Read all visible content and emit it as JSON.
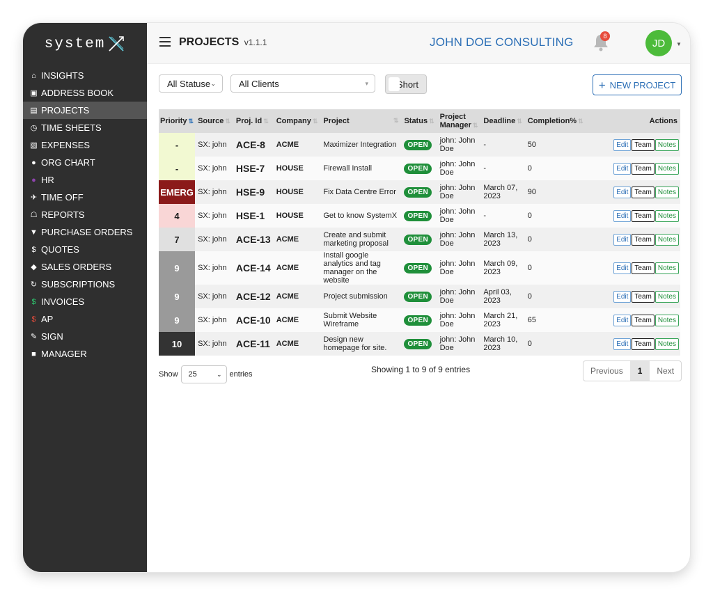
{
  "app": {
    "logo_text": "system"
  },
  "sidebar": {
    "items": [
      {
        "label": "INSIGHTS",
        "icon": "home-icon",
        "glyph": "⌂",
        "color": "#ffffff"
      },
      {
        "label": "ADDRESS BOOK",
        "icon": "address-book-icon",
        "glyph": "▣",
        "color": "#ffffff"
      },
      {
        "label": "PROJECTS",
        "icon": "briefcase-icon",
        "glyph": "▤",
        "color": "#ffffff",
        "active": true
      },
      {
        "label": "TIME SHEETS",
        "icon": "clock-icon",
        "glyph": "◷",
        "color": "#ffffff"
      },
      {
        "label": "EXPENSES",
        "icon": "money-icon",
        "glyph": "▧",
        "color": "#ffffff"
      },
      {
        "label": "ORG CHART",
        "icon": "user-icon",
        "glyph": "●",
        "color": "#ffffff"
      },
      {
        "label": "HR",
        "icon": "user-purple-icon",
        "glyph": "●",
        "color": "#8e44ad"
      },
      {
        "label": "TIME OFF",
        "icon": "plane-icon",
        "glyph": "✈",
        "color": "#ffffff"
      },
      {
        "label": "REPORTS",
        "icon": "bank-icon",
        "glyph": "☖",
        "color": "#ffffff"
      },
      {
        "label": "PURCHASE ORDERS",
        "icon": "cart-icon",
        "glyph": "▼",
        "color": "#ffffff"
      },
      {
        "label": "QUOTES",
        "icon": "dollar-icon",
        "glyph": "$",
        "color": "#ffffff"
      },
      {
        "label": "SALES ORDERS",
        "icon": "tag-icon",
        "glyph": "◆",
        "color": "#ffffff"
      },
      {
        "label": "SUBSCRIPTIONS",
        "icon": "refresh-icon",
        "glyph": "↻",
        "color": "#ffffff"
      },
      {
        "label": "INVOICES",
        "icon": "dollar-green-icon",
        "glyph": "$",
        "color": "#2ecc71"
      },
      {
        "label": "AP",
        "icon": "dollar-red-icon",
        "glyph": "$",
        "color": "#e74c3c"
      },
      {
        "label": "SIGN",
        "icon": "pen-icon",
        "glyph": "✎",
        "color": "#ffffff"
      },
      {
        "label": "MANAGER",
        "icon": "lock-icon",
        "glyph": "■",
        "color": "#ffffff"
      }
    ]
  },
  "header": {
    "title": "PROJECTS",
    "version": "v1.1.1",
    "company": "JOHN DOE CONSULTING",
    "notification_count": "8",
    "avatar_initials": "JD"
  },
  "toolbar": {
    "status_filter": "All Statuses",
    "client_filter": "All Clients",
    "short_label": "Short",
    "new_project_label": "NEW PROJECT"
  },
  "table": {
    "columns": [
      "Priority",
      "Source",
      "Proj. Id",
      "Company",
      "Project",
      "Status",
      "Project Manager",
      "Deadline",
      "Completion%",
      "Actions"
    ],
    "action_labels": {
      "edit": "Edit",
      "team": "Team",
      "notes": "Notes"
    },
    "rows": [
      {
        "priority": "-",
        "priority_bg": "#f2f9d2",
        "priority_fg": "#222222",
        "source": "SX: john",
        "id": "ACE-8",
        "company": "ACME",
        "project": "Maximizer Integration",
        "status": "OPEN",
        "manager": "john: John Doe",
        "deadline": "-",
        "deadline_overdue": false,
        "completion": "50"
      },
      {
        "priority": "-",
        "priority_bg": "#f2f9d2",
        "priority_fg": "#222222",
        "source": "SX: john",
        "id": "HSE-7",
        "company": "HOUSE",
        "project": "Firewall Install",
        "status": "OPEN",
        "manager": "john: John Doe",
        "deadline": "-",
        "deadline_overdue": false,
        "completion": "0"
      },
      {
        "priority": "EMERG",
        "priority_bg": "#8b1a1a",
        "priority_fg": "#ffffff",
        "source": "SX: john",
        "id": "HSE-9",
        "company": "HOUSE",
        "project": "Fix Data Centre Error",
        "status": "OPEN",
        "manager": "john: John Doe",
        "deadline": "March 07, 2023",
        "deadline_overdue": true,
        "completion": "90"
      },
      {
        "priority": "4",
        "priority_bg": "#f9d6d6",
        "priority_fg": "#222222",
        "source": "SX: john",
        "id": "HSE-1",
        "company": "HOUSE",
        "project": "Get to know SystemX",
        "status": "OPEN",
        "manager": "john: John Doe",
        "deadline": "-",
        "deadline_overdue": false,
        "completion": "0"
      },
      {
        "priority": "7",
        "priority_bg": "#e0e0e0",
        "priority_fg": "#222222",
        "source": "SX: john",
        "id": "ACE-13",
        "company": "ACME",
        "project": "Create and submit marketing proposal",
        "status": "OPEN",
        "manager": "john: John Doe",
        "deadline": "March 13, 2023",
        "deadline_overdue": true,
        "completion": "0"
      },
      {
        "priority": "9",
        "priority_bg": "#9a9a9a",
        "priority_fg": "#ffffff",
        "source": "SX: john",
        "id": "ACE-14",
        "company": "ACME",
        "project": "Install google analytics and tag manager on the website",
        "status": "OPEN",
        "manager": "john: John Doe",
        "deadline": "March 09, 2023",
        "deadline_overdue": true,
        "completion": "0"
      },
      {
        "priority": "9",
        "priority_bg": "#9a9a9a",
        "priority_fg": "#ffffff",
        "source": "SX: john",
        "id": "ACE-12",
        "company": "ACME",
        "project": "Project submission",
        "status": "OPEN",
        "manager": "john: John Doe",
        "deadline": "April 03, 2023",
        "deadline_overdue": false,
        "completion": "0"
      },
      {
        "priority": "9",
        "priority_bg": "#9a9a9a",
        "priority_fg": "#ffffff",
        "source": "SX: john",
        "id": "ACE-10",
        "company": "ACME",
        "project": "Submit Website Wireframe",
        "status": "OPEN",
        "manager": "john: John Doe",
        "deadline": "March 21, 2023",
        "deadline_overdue": true,
        "completion": "65"
      },
      {
        "priority": "10",
        "priority_bg": "#333333",
        "priority_fg": "#ffffff",
        "source": "SX: john",
        "id": "ACE-11",
        "company": "ACME",
        "project": "Design new homepage for site.",
        "status": "OPEN",
        "manager": "john: John Doe",
        "deadline": "March 10, 2023",
        "deadline_overdue": true,
        "completion": "0"
      }
    ]
  },
  "footer": {
    "show_label": "Show",
    "page_size": "25",
    "entries_label": "entries",
    "showing_text": "Showing 1 to 9 of 9 entries",
    "prev_label": "Previous",
    "current_page": "1",
    "next_label": "Next"
  },
  "colors": {
    "sidebar_bg": "#2f2f2f",
    "accent_blue": "#2c6fb6",
    "status_green": "#1f8f3a",
    "overdue_red": "#e02020",
    "avatar_green": "#4cbb3a"
  }
}
